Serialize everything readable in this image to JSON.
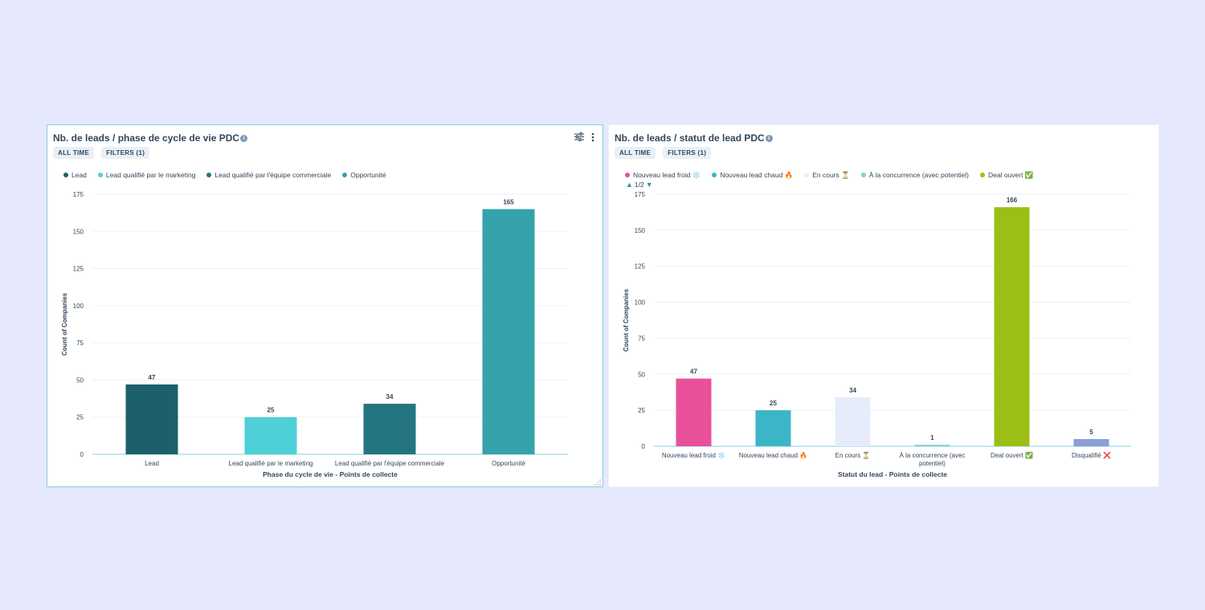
{
  "page": {
    "background": "#e6e8fd"
  },
  "charts": [
    {
      "title": "Nb. de leads / phase de cycle de vie PDC",
      "pills": [
        "ALL TIME",
        "FILTERS (1)"
      ],
      "icons": [
        "settings-sliders-icon",
        "more-vertical-icon",
        "info-icon",
        "resize-grip-icon"
      ],
      "legend": [
        {
          "label": "Lead",
          "color": "#1d5f6b"
        },
        {
          "label": "Lead qualifié par le marketing",
          "color": "#4fcfd7"
        },
        {
          "label": "Lead qualifié par l'équipe commerciale",
          "color": "#237580"
        },
        {
          "label": "Opportunité",
          "color": "#35a2ab"
        }
      ]
    },
    {
      "title": "Nb. de leads / statut de lead PDC",
      "pills": [
        "ALL TIME",
        "FILTERS (1)"
      ],
      "icons": [
        "info-icon"
      ],
      "legend": [
        {
          "label": "Nouveau lead froid ❄️",
          "color": "#e8519a"
        },
        {
          "label": "Nouveau lead chaud 🔥",
          "color": "#3cb6c6"
        },
        {
          "label": "En cours ⏳",
          "color": "#e7ecfb"
        },
        {
          "label": "À la concurrence (avec potentiel)",
          "color": "#7fd3c5"
        },
        {
          "label": "Deal ouvert ✅",
          "color": "#9bbf17"
        }
      ],
      "pager": {
        "label": "1/2"
      }
    }
  ],
  "chart_data": [
    {
      "type": "bar",
      "title": "Nb. de leads / phase de cycle de vie PDC",
      "categories": [
        "Lead",
        "Lead qualifié par le marketing",
        "Lead qualifié par l'équipe commerciale",
        "Opportunité"
      ],
      "values": [
        47,
        25,
        34,
        165
      ],
      "colors": [
        "#1d5f6b",
        "#4fcfd7",
        "#237580",
        "#35a2ab"
      ],
      "xlabel": "Phase du cycle de vie - Points de collecte",
      "ylabel": "Count of Companies",
      "ylim": [
        0,
        175
      ],
      "yticks": [
        0,
        25,
        50,
        75,
        100,
        125,
        150,
        175
      ],
      "grid": true,
      "legend_position": "top-left"
    },
    {
      "type": "bar",
      "title": "Nb. de leads / statut de lead PDC",
      "categories": [
        "Nouveau lead froid ❄️",
        "Nouveau lead chaud 🔥",
        "En cours ⏳",
        "À la concurrence (avec potentiel)",
        "Deal ouvert ✅",
        "Disqualifié ❌"
      ],
      "category_lines": [
        [
          "Nouveau lead froid ❄️"
        ],
        [
          "Nouveau lead chaud 🔥"
        ],
        [
          "En cours ⏳"
        ],
        [
          "À la concurrence (avec",
          "potentiel)"
        ],
        [
          "Deal ouvert ✅"
        ],
        [
          "Disqualifié ❌"
        ]
      ],
      "values": [
        47,
        25,
        34,
        1,
        166,
        5
      ],
      "colors": [
        "#e8519a",
        "#3cb6c6",
        "#e7ecfb",
        "#7fd3c5",
        "#9bbf17",
        "#8a9fd6"
      ],
      "xlabel": "Statut du lead - Points de collecte",
      "ylabel": "Count of Companies",
      "ylim": [
        0,
        175
      ],
      "yticks": [
        0,
        25,
        50,
        75,
        100,
        125,
        150,
        175
      ],
      "grid": true,
      "legend_position": "top-left"
    }
  ]
}
